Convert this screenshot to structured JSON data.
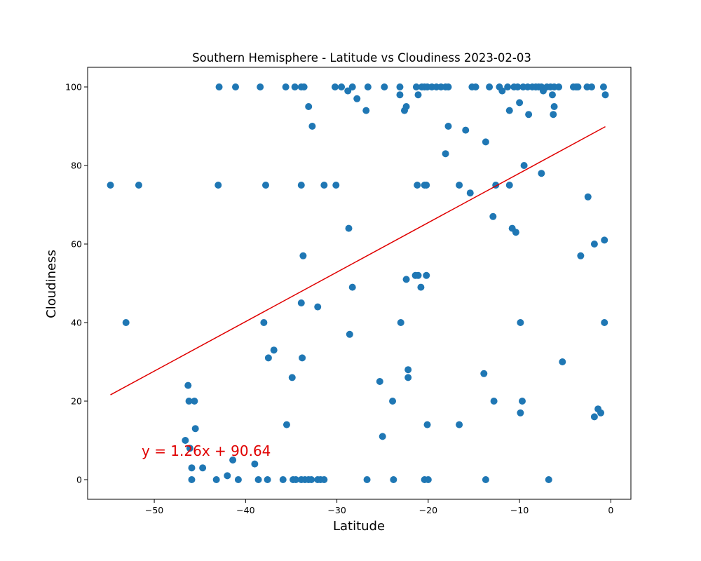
{
  "chart_data": {
    "type": "scatter",
    "title": "Southern Hemisphere - Latitude vs Cloudiness 2023-02-03",
    "xlabel": "Latitude",
    "ylabel": "Cloudiness",
    "xlim": [
      -57.3,
      2.2
    ],
    "ylim": [
      -5,
      105
    ],
    "xticks": [
      -50,
      -40,
      -30,
      -20,
      -10,
      0
    ],
    "yticks": [
      0,
      20,
      40,
      60,
      80,
      100
    ],
    "grid": false,
    "colors": {
      "points": "#1f77b4",
      "regression": "#e00000"
    },
    "regression": {
      "slope": 1.26,
      "intercept": 90.64,
      "x_range": [
        -54.8,
        -0.6
      ],
      "label": "y = 1.26x + 90.64"
    },
    "points": [
      [
        -54.8,
        75
      ],
      [
        -51.7,
        75
      ],
      [
        -53.1,
        40
      ],
      [
        -42.9,
        100
      ],
      [
        -41.1,
        100
      ],
      [
        -38.4,
        100
      ],
      [
        -35.6,
        100
      ],
      [
        -34.6,
        100
      ],
      [
        -33.9,
        100
      ],
      [
        -33.6,
        100
      ],
      [
        -30.2,
        100
      ],
      [
        -29.5,
        100
      ],
      [
        -28.3,
        100
      ],
      [
        -24.8,
        100
      ],
      [
        -23.1,
        100
      ],
      [
        -21.3,
        100
      ],
      [
        -20.7,
        100
      ],
      [
        -20.4,
        100
      ],
      [
        -20.1,
        100
      ],
      [
        -19.6,
        100
      ],
      [
        -19.1,
        100
      ],
      [
        -18.6,
        100
      ],
      [
        -18.1,
        100
      ],
      [
        -17.8,
        100
      ],
      [
        -15.2,
        100
      ],
      [
        -14.8,
        100
      ],
      [
        -13.3,
        100
      ],
      [
        -12.2,
        100
      ],
      [
        -11.3,
        100
      ],
      [
        -10.6,
        100
      ],
      [
        -10.2,
        100
      ],
      [
        -9.6,
        100
      ],
      [
        -9.1,
        100
      ],
      [
        -8.6,
        100
      ],
      [
        -8.2,
        100
      ],
      [
        -7.9,
        100
      ],
      [
        -7.6,
        100
      ],
      [
        -7.0,
        100
      ],
      [
        -6.6,
        100
      ],
      [
        -6.2,
        100
      ],
      [
        -5.7,
        100
      ],
      [
        -4.1,
        100
      ],
      [
        -3.8,
        100
      ],
      [
        -3.6,
        100
      ],
      [
        -2.6,
        100
      ],
      [
        -2.1,
        100
      ],
      [
        -0.8,
        100
      ],
      [
        -26.6,
        100
      ],
      [
        -33.1,
        95
      ],
      [
        -22.4,
        95
      ],
      [
        -6.2,
        95
      ],
      [
        -28.8,
        99
      ],
      [
        -11.9,
        99
      ],
      [
        -7.4,
        99
      ],
      [
        -27.8,
        97
      ],
      [
        -23.1,
        98
      ],
      [
        -21.1,
        98
      ],
      [
        -6.4,
        98
      ],
      [
        -0.6,
        98
      ],
      [
        -26.8,
        94
      ],
      [
        -22.6,
        94
      ],
      [
        -11.1,
        94
      ],
      [
        -10.0,
        96
      ],
      [
        -9.0,
        93
      ],
      [
        -6.3,
        93
      ],
      [
        -32.7,
        90
      ],
      [
        -17.8,
        90
      ],
      [
        -15.9,
        89
      ],
      [
        -13.7,
        86
      ],
      [
        -18.1,
        83
      ],
      [
        -9.5,
        80
      ],
      [
        -7.6,
        78
      ],
      [
        -43.0,
        75
      ],
      [
        -37.8,
        75
      ],
      [
        -33.9,
        75
      ],
      [
        -31.4,
        75
      ],
      [
        -30.1,
        75
      ],
      [
        -21.2,
        75
      ],
      [
        -20.4,
        75
      ],
      [
        -20.2,
        75
      ],
      [
        -16.6,
        75
      ],
      [
        -12.6,
        75
      ],
      [
        -11.1,
        75
      ],
      [
        -15.4,
        73
      ],
      [
        -2.5,
        72
      ],
      [
        -12.9,
        67
      ],
      [
        -28.7,
        64
      ],
      [
        -10.8,
        64
      ],
      [
        -10.4,
        63
      ],
      [
        -0.7,
        61
      ],
      [
        -1.8,
        60
      ],
      [
        -33.7,
        57
      ],
      [
        -3.3,
        57
      ],
      [
        -21.4,
        52
      ],
      [
        -21.1,
        52
      ],
      [
        -20.2,
        52
      ],
      [
        -22.4,
        51
      ],
      [
        -28.3,
        49
      ],
      [
        -20.8,
        49
      ],
      [
        -33.9,
        45
      ],
      [
        -32.1,
        44
      ],
      [
        -38.0,
        40
      ],
      [
        -23.0,
        40
      ],
      [
        -9.9,
        40
      ],
      [
        -0.7,
        40
      ],
      [
        -28.6,
        37
      ],
      [
        -36.9,
        33
      ],
      [
        -37.5,
        31
      ],
      [
        -33.8,
        31
      ],
      [
        -5.3,
        30
      ],
      [
        -22.2,
        28
      ],
      [
        -13.9,
        27
      ],
      [
        -34.9,
        26
      ],
      [
        -22.2,
        26
      ],
      [
        -25.3,
        25
      ],
      [
        -46.3,
        24
      ],
      [
        -46.2,
        20
      ],
      [
        -45.6,
        20
      ],
      [
        -23.9,
        20
      ],
      [
        -12.8,
        20
      ],
      [
        -9.7,
        20
      ],
      [
        -1.4,
        18
      ],
      [
        -9.9,
        17
      ],
      [
        -1.1,
        17
      ],
      [
        -1.8,
        16
      ],
      [
        -35.5,
        14
      ],
      [
        -20.1,
        14
      ],
      [
        -16.6,
        14
      ],
      [
        -45.5,
        13
      ],
      [
        -25.0,
        11
      ],
      [
        -46.6,
        10
      ],
      [
        -46.1,
        8
      ],
      [
        -45.9,
        3
      ],
      [
        -44.7,
        3
      ],
      [
        -41.4,
        5
      ],
      [
        -39.0,
        4
      ],
      [
        -42.0,
        1
      ],
      [
        -45.9,
        0
      ],
      [
        -43.2,
        0
      ],
      [
        -40.8,
        0
      ],
      [
        -38.6,
        0
      ],
      [
        -37.6,
        0
      ],
      [
        -35.9,
        0
      ],
      [
        -34.8,
        0
      ],
      [
        -34.5,
        0
      ],
      [
        -33.9,
        0
      ],
      [
        -33.5,
        0
      ],
      [
        -33.1,
        0
      ],
      [
        -32.8,
        0
      ],
      [
        -32.1,
        0
      ],
      [
        -31.8,
        0
      ],
      [
        -31.4,
        0
      ],
      [
        -26.7,
        0
      ],
      [
        -23.8,
        0
      ],
      [
        -20.4,
        0
      ],
      [
        -20.0,
        0
      ],
      [
        -13.7,
        0
      ],
      [
        -6.8,
        0
      ]
    ]
  }
}
